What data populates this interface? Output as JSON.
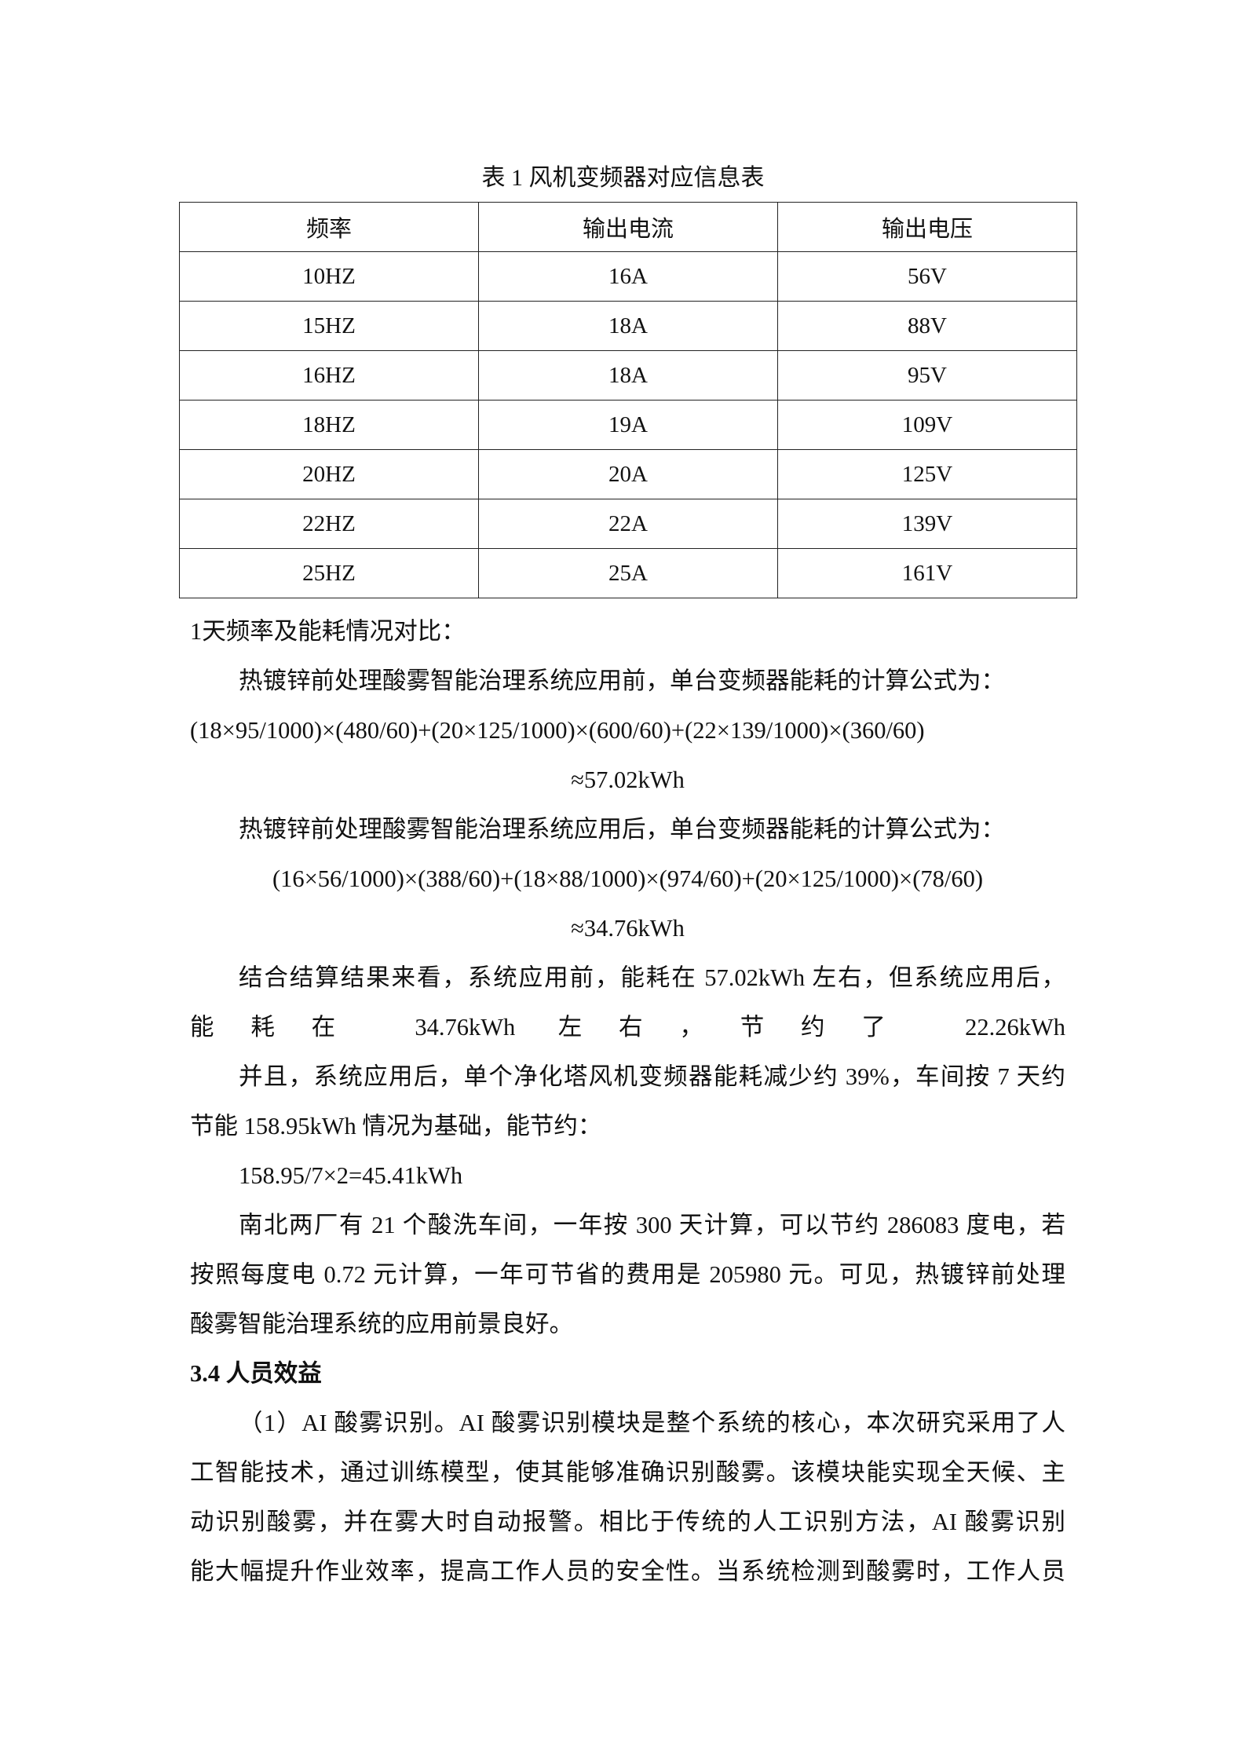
{
  "table": {
    "caption": "表 1 风机变频器对应信息表",
    "headers": [
      "频率",
      "输出电流",
      "输出电压"
    ],
    "rows": [
      [
        "10HZ",
        "16A",
        "56V"
      ],
      [
        "15HZ",
        "18A",
        "88V"
      ],
      [
        "16HZ",
        "18A",
        "95V"
      ],
      [
        "18HZ",
        "19A",
        "109V"
      ],
      [
        "20HZ",
        "20A",
        "125V"
      ],
      [
        "22HZ",
        "22A",
        "139V"
      ],
      [
        "25HZ",
        "25A",
        "161V"
      ]
    ]
  },
  "body": {
    "lines": [
      "1天频率及能耗情况对比：",
      "热镀锌前处理酸雾智能治理系统应用前，单台变频器能耗的计算公式为：",
      "(18×95/1000)×(480/60)+(20×125/1000)×(600/60)+(22×139/1000)×(360/60)",
      "≈57.02kWh",
      "热镀锌前处理酸雾智能治理系统应用后，单台变频器能耗的计算公式为：",
      "(16×56/1000)×(388/60)+(18×88/1000)×(974/60)+(20×125/1000)×(78/60)",
      "≈34.76kWh",
      "结合结算结果来看，系统应用前，能耗在 57.02kWh 左右，但系统应用后，",
      "能耗在 34.76kWh 左右，节约了 22.26kWh",
      "并且，系统应用后，单个净化塔风机变频器能耗减少约 39%，车间按 7 天约",
      "节能 158.95kWh 情况为基础，能节约：",
      "158.95/7×2=45.41kWh",
      "南北两厂有 21 个酸洗车间，一年按 300 天计算，可以节约 286083 度电，若",
      "按照每度电 0.72 元计算，一年可节省的费用是 205980 元。可见，热镀锌前处理",
      "酸雾智能治理系统的应用前景良好。",
      "3.4 人员效益",
      "（1）AI 酸雾识别。AI 酸雾识别模块是整个系统的核心，本次研究采用了人",
      "工智能技术，通过训练模型，使其能够准确识别酸雾。该模块能实现全天候、主",
      "动识别酸雾，并在雾大时自动报警。相比于传统的人工识别方法，AI 酸雾识别",
      "能大幅提升作业效率，提高工作人员的安全性。当系统检测到酸雾时，工作人员"
    ]
  }
}
